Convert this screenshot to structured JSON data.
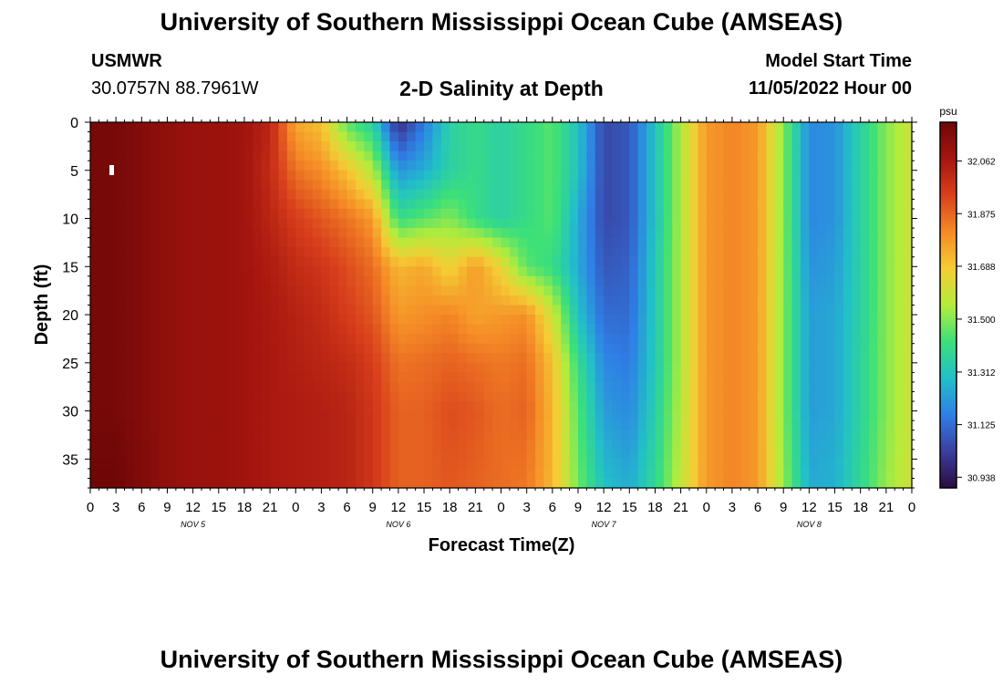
{
  "header": {
    "title": "University of Southern Mississippi Ocean Cube (AMSEAS)",
    "station": "USMWR",
    "coords": "30.0757N  88.7961W",
    "subtitle": "2-D Salinity at Depth",
    "model_start_label": "Model Start Time",
    "model_start_value": "11/05/2022 Hour 00"
  },
  "footer": {
    "title": "University of Southern Mississippi Ocean Cube (AMSEAS)"
  },
  "chart_data": {
    "type": "heatmap",
    "xlabel": "Forecast Time(Z)",
    "ylabel": "Depth (ft)",
    "x_tick_labels": [
      "0",
      "3",
      "6",
      "9",
      "12",
      "15",
      "18",
      "21",
      "0",
      "3",
      "6",
      "9",
      "12",
      "15",
      "18",
      "21",
      "0",
      "3",
      "6",
      "9",
      "12",
      "15",
      "18",
      "21",
      "0",
      "3",
      "6",
      "9",
      "12",
      "15",
      "18",
      "21",
      "0"
    ],
    "x_range_hours": [
      0,
      96
    ],
    "day_labels": [
      "NOV 5",
      "NOV 6",
      "NOV 7",
      "NOV 8"
    ],
    "y_tick_labels": [
      "0",
      "5",
      "10",
      "15",
      "20",
      "25",
      "30",
      "35"
    ],
    "y_ticks": [
      0,
      5,
      10,
      15,
      20,
      25,
      30,
      35
    ],
    "ylim": [
      0,
      38
    ],
    "y_inverted": true,
    "colorbar": {
      "unit": "psu",
      "tick_labels": [
        "32.062",
        "31.875",
        "31.688",
        "31.500",
        "31.312",
        "31.125",
        "30.938"
      ],
      "tick_values": [
        32.062,
        31.875,
        31.688,
        31.5,
        31.312,
        31.125,
        30.938
      ],
      "range": [
        30.9,
        32.2
      ],
      "colors": [
        "#2a0b3f",
        "#3a3f9f",
        "#2f7fe6",
        "#22c0c8",
        "#3be07a",
        "#b4ec3c",
        "#f5cc34",
        "#f58a26",
        "#d9401c",
        "#a6150f",
        "#6e0707"
      ]
    },
    "hours": [
      0,
      3,
      6,
      9,
      12,
      15,
      18,
      21,
      24,
      27,
      30,
      33,
      36,
      39,
      42,
      45,
      48,
      51,
      54,
      57,
      60,
      63,
      66,
      69,
      72,
      75,
      78,
      81,
      84,
      87,
      90,
      93,
      96
    ],
    "depths": [
      0,
      5,
      10,
      15,
      20,
      25,
      30,
      38
    ],
    "values": [
      [
        32.18,
        32.18,
        32.15,
        32.12,
        32.1,
        32.1,
        32.08,
        32.02,
        31.75,
        31.7,
        31.45,
        31.35,
        30.98,
        31.15,
        31.35,
        31.4,
        31.35,
        31.4,
        31.45,
        31.3,
        31.05,
        31.08,
        31.3,
        31.55,
        31.78,
        31.82,
        31.78,
        31.5,
        31.18,
        31.2,
        31.35,
        31.5,
        31.6
      ],
      [
        32.18,
        32.18,
        32.15,
        32.12,
        32.1,
        32.1,
        32.08,
        32.0,
        31.85,
        31.8,
        31.7,
        31.55,
        31.2,
        31.25,
        31.35,
        31.4,
        31.35,
        31.4,
        31.45,
        31.3,
        31.05,
        31.08,
        31.3,
        31.55,
        31.78,
        31.82,
        31.78,
        31.5,
        31.18,
        31.2,
        31.35,
        31.5,
        31.6
      ],
      [
        32.18,
        32.18,
        32.15,
        32.12,
        32.1,
        32.1,
        32.08,
        32.02,
        31.95,
        31.9,
        31.85,
        31.78,
        31.4,
        31.45,
        31.5,
        31.4,
        31.35,
        31.4,
        31.45,
        31.25,
        31.05,
        31.08,
        31.3,
        31.55,
        31.78,
        31.82,
        31.78,
        31.5,
        31.18,
        31.2,
        31.35,
        31.5,
        31.6
      ],
      [
        32.18,
        32.18,
        32.15,
        32.12,
        32.1,
        32.1,
        32.08,
        32.05,
        32.0,
        31.97,
        31.92,
        31.86,
        31.72,
        31.75,
        31.65,
        31.78,
        31.65,
        31.45,
        31.4,
        31.25,
        31.08,
        31.1,
        31.32,
        31.55,
        31.78,
        31.82,
        31.78,
        31.5,
        31.2,
        31.22,
        31.35,
        31.5,
        31.6
      ],
      [
        32.18,
        32.18,
        32.15,
        32.12,
        32.1,
        32.1,
        32.08,
        32.06,
        32.03,
        32.0,
        31.95,
        31.9,
        31.78,
        31.8,
        31.82,
        31.76,
        31.78,
        31.8,
        31.6,
        31.3,
        31.12,
        31.12,
        31.32,
        31.55,
        31.78,
        31.82,
        31.78,
        31.5,
        31.22,
        31.24,
        31.35,
        31.5,
        31.6
      ],
      [
        32.18,
        32.18,
        32.15,
        32.12,
        32.1,
        32.1,
        32.08,
        32.06,
        32.04,
        32.02,
        32.0,
        31.95,
        31.85,
        31.86,
        31.88,
        31.86,
        31.84,
        31.86,
        31.7,
        31.4,
        31.18,
        31.15,
        31.32,
        31.55,
        31.78,
        31.82,
        31.78,
        31.5,
        31.22,
        31.24,
        31.36,
        31.5,
        31.6
      ],
      [
        32.18,
        32.18,
        32.15,
        32.12,
        32.1,
        32.1,
        32.08,
        32.06,
        32.05,
        32.04,
        32.02,
        31.97,
        31.88,
        31.88,
        31.92,
        31.9,
        31.86,
        31.88,
        31.72,
        31.45,
        31.22,
        31.18,
        31.34,
        31.56,
        31.78,
        31.82,
        31.78,
        31.5,
        31.22,
        31.24,
        31.36,
        31.5,
        31.6
      ],
      [
        32.2,
        32.2,
        32.16,
        32.12,
        32.1,
        32.1,
        32.08,
        32.06,
        32.05,
        32.04,
        32.02,
        31.97,
        31.88,
        31.88,
        31.9,
        31.88,
        31.86,
        31.84,
        31.72,
        31.48,
        31.3,
        31.25,
        31.38,
        31.58,
        31.78,
        31.82,
        31.78,
        31.52,
        31.25,
        31.26,
        31.38,
        31.52,
        31.6
      ]
    ]
  }
}
